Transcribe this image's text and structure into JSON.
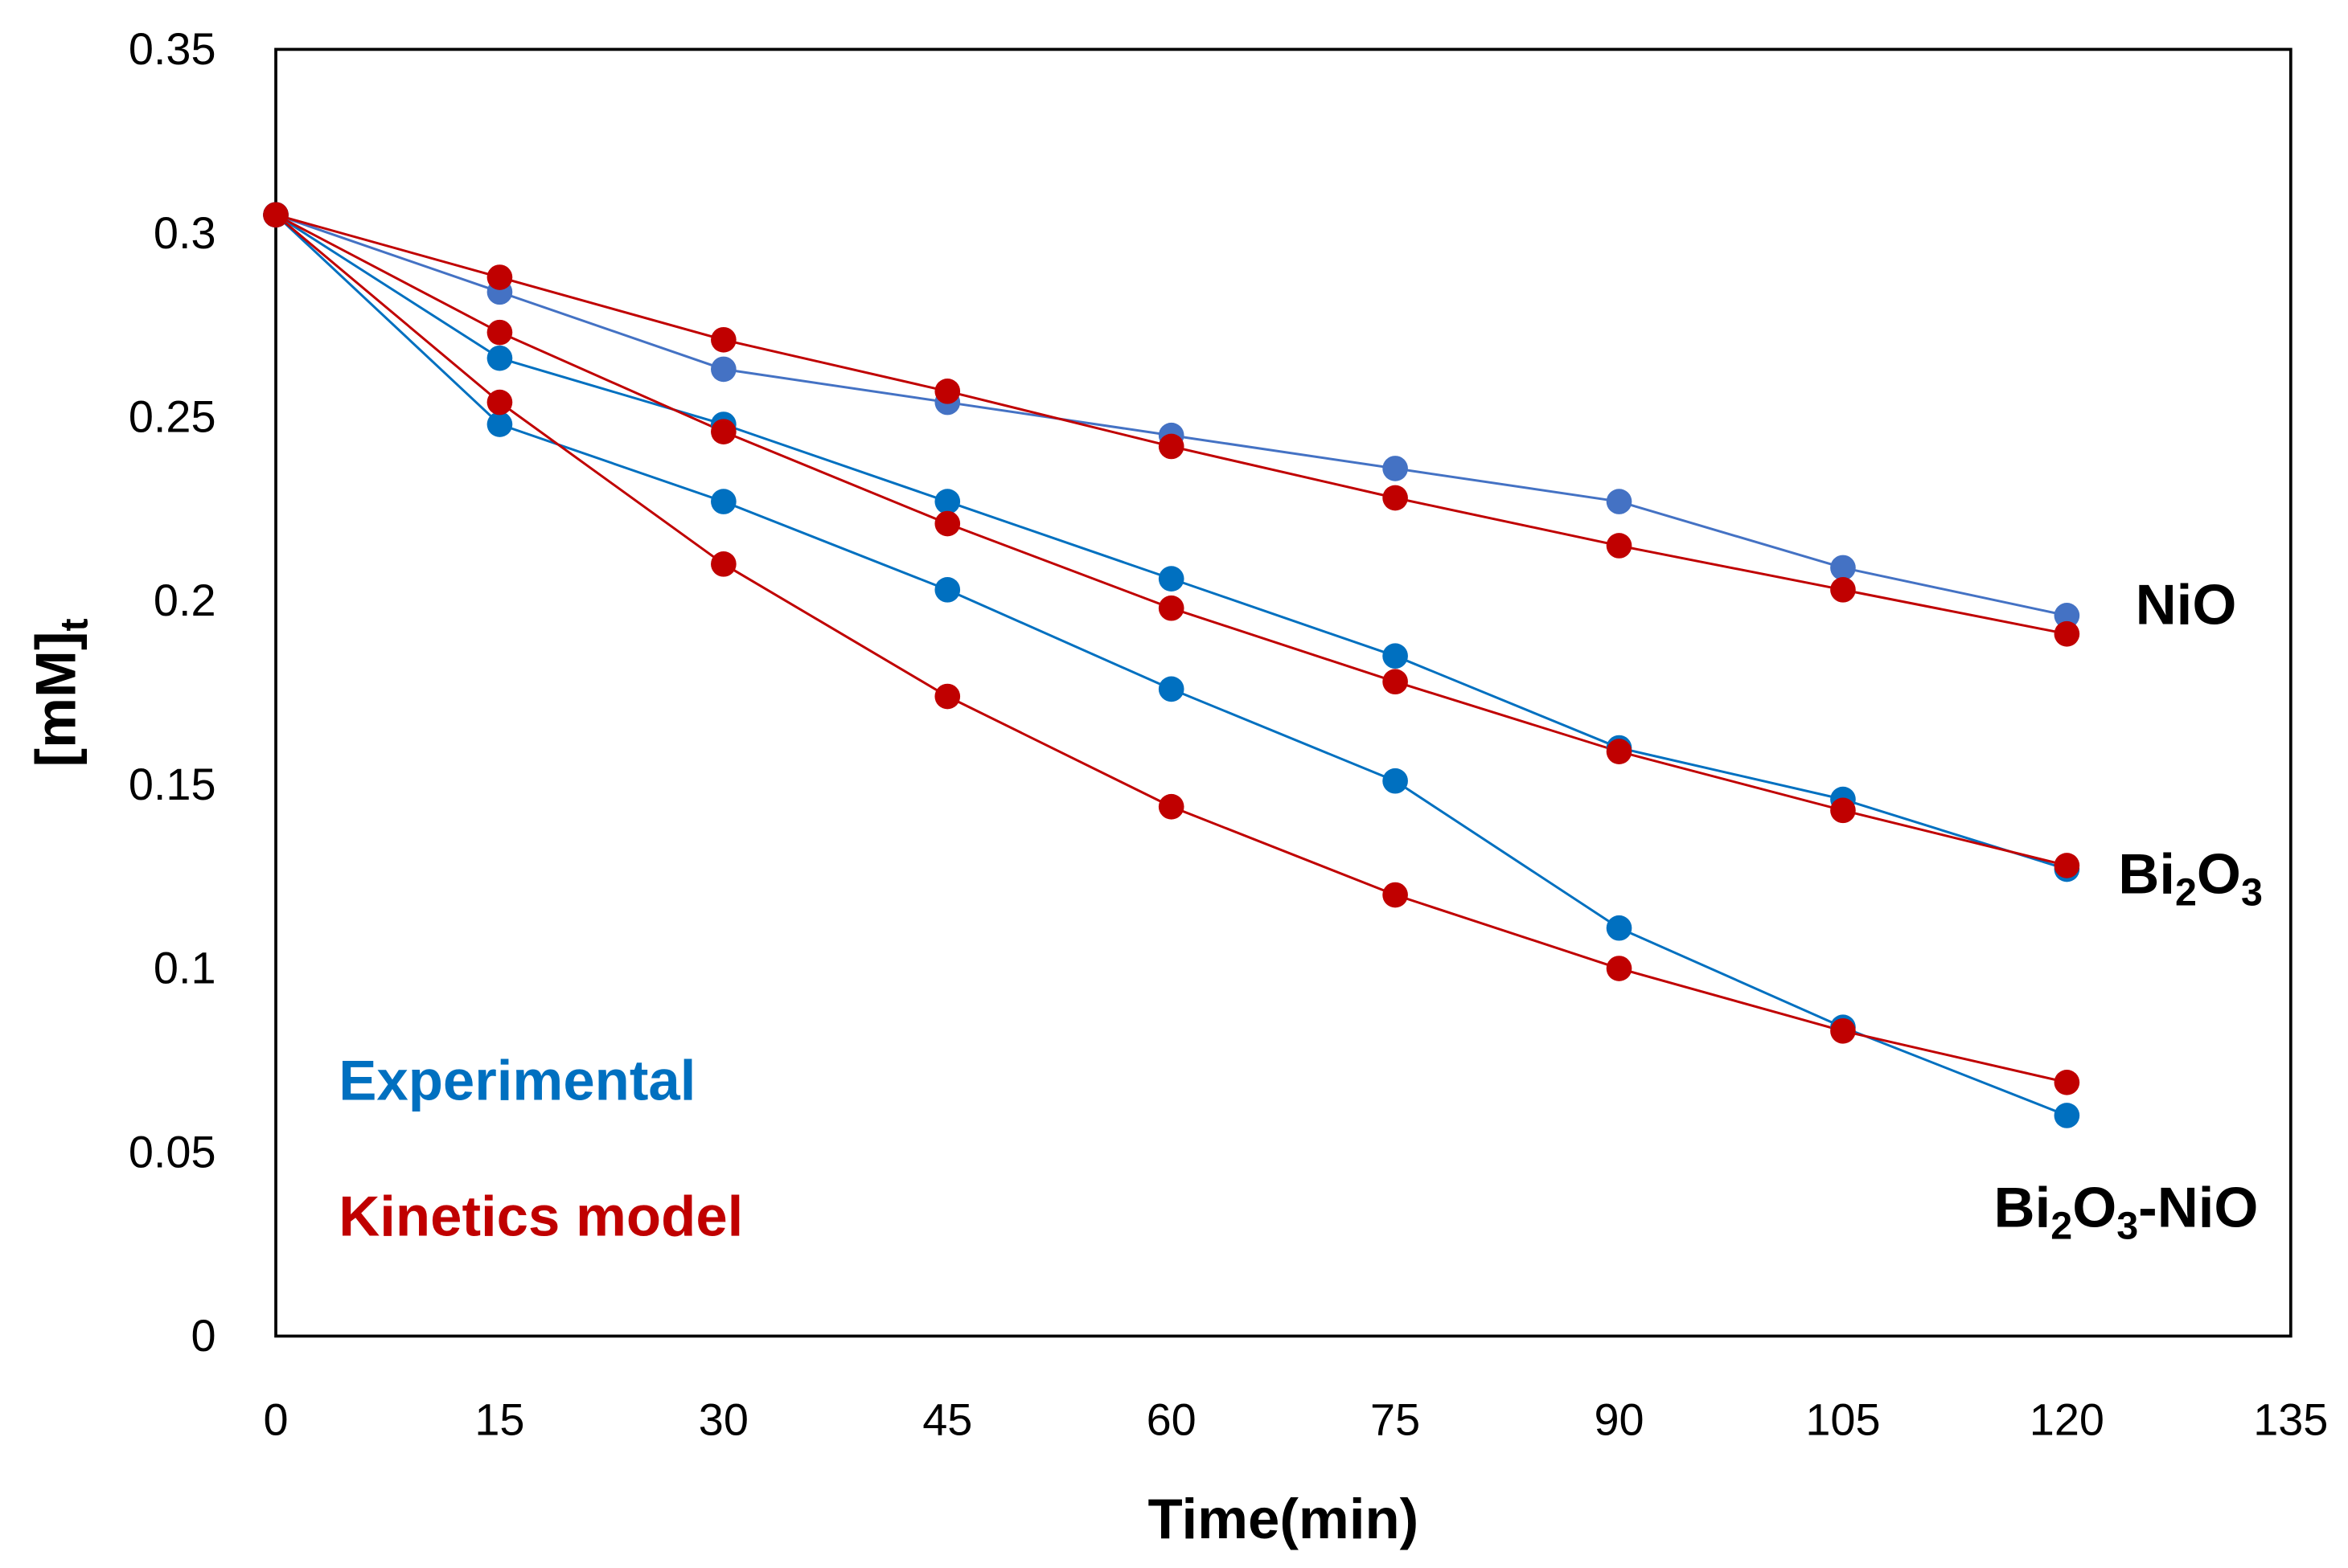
{
  "chart_data": {
    "type": "line",
    "title": "",
    "xlabel": "Time(min)",
    "ylabel": "[mM]",
    "ylabel_subscript": "t",
    "xlim": [
      0,
      135
    ],
    "ylim": [
      0,
      0.35
    ],
    "x_ticks": [
      "0",
      "15",
      "30",
      "45",
      "60",
      "75",
      "90",
      "105",
      "120",
      "135"
    ],
    "y_ticks": [
      "0",
      "0.05",
      "0.1",
      "0.15",
      "0.2",
      "0.25",
      "0.3",
      "0.35"
    ],
    "grid": false,
    "x": [
      0,
      15,
      30,
      45,
      60,
      75,
      90,
      105,
      120
    ],
    "legend": [
      {
        "label": "Experimental",
        "color": "#0070C0"
      },
      {
        "label": "Kinetics model",
        "color": "#C00000"
      }
    ],
    "groups": [
      {
        "label": "NiO",
        "label_parts": [
          [
            "NiO",
            false
          ]
        ]
      },
      {
        "label": "Bi2O3",
        "label_parts": [
          [
            "Bi",
            false
          ],
          [
            "2",
            true
          ],
          [
            "O",
            false
          ],
          [
            "3",
            true
          ]
        ]
      },
      {
        "label": "Bi2O3-NiO",
        "label_parts": [
          [
            "Bi",
            false
          ],
          [
            "2",
            true
          ],
          [
            "O",
            false
          ],
          [
            "3",
            true
          ],
          [
            "-NiO",
            false
          ]
        ]
      }
    ],
    "series": [
      {
        "name": "NiO Experimental",
        "group": "NiO",
        "color": "#4472C4",
        "values": [
          0.305,
          0.284,
          0.263,
          0.254,
          0.245,
          0.236,
          0.227,
          0.209,
          0.196
        ]
      },
      {
        "name": "NiO Kinetics model",
        "group": "NiO",
        "color": "#C00000",
        "values": [
          0.305,
          0.288,
          0.271,
          0.257,
          0.242,
          0.228,
          0.215,
          0.203,
          0.191
        ]
      },
      {
        "name": "Bi2O3 Experimental",
        "group": "Bi2O3",
        "color": "#0070C0",
        "values": [
          0.305,
          0.266,
          0.248,
          0.227,
          0.206,
          0.185,
          0.16,
          0.146,
          0.127
        ]
      },
      {
        "name": "Bi2O3 Kinetics model",
        "group": "Bi2O3",
        "color": "#C00000",
        "values": [
          0.305,
          0.273,
          0.246,
          0.221,
          0.198,
          0.178,
          0.159,
          0.143,
          0.128
        ]
      },
      {
        "name": "Bi2O3-NiO Experimental",
        "group": "Bi2O3-NiO",
        "color": "#0070C0",
        "values": [
          0.305,
          0.248,
          0.227,
          0.203,
          0.176,
          0.151,
          0.111,
          0.084,
          0.06
        ]
      },
      {
        "name": "Bi2O3-NiO Kinetics model",
        "group": "Bi2O3-NiO",
        "color": "#C00000",
        "values": [
          0.305,
          0.254,
          0.21,
          0.174,
          0.144,
          0.12,
          0.1,
          0.083,
          0.069
        ]
      }
    ]
  }
}
